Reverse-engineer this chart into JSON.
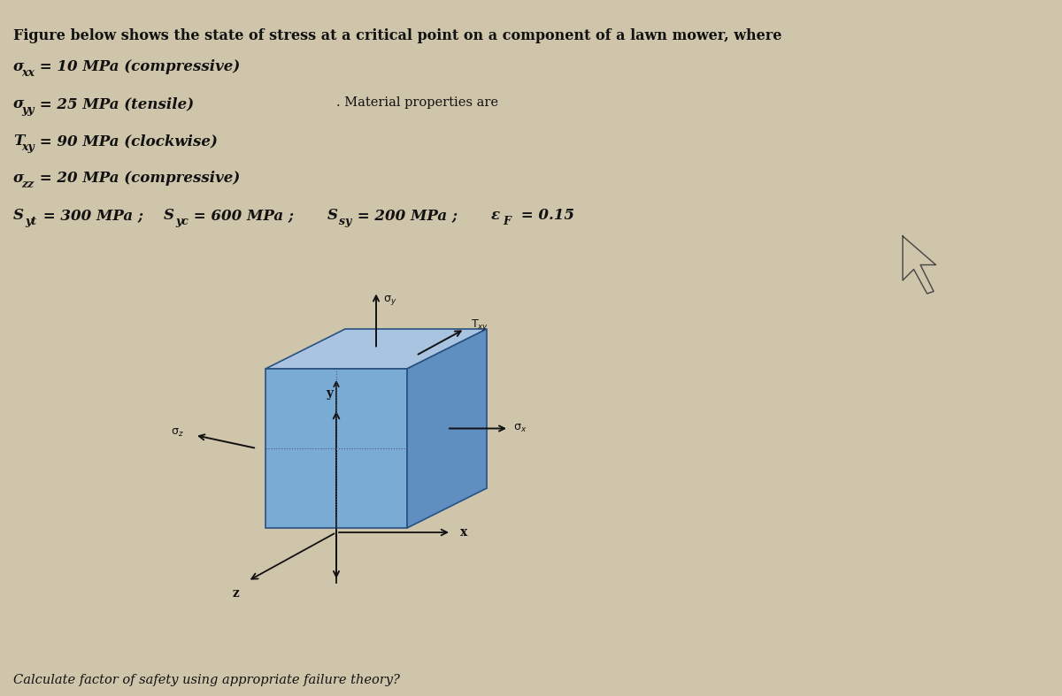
{
  "bg_color": "#cfc5aa",
  "title_line": "Figure below shows the state of stress at a critical point on a component of a lawn mower, where",
  "line1": "σ",
  "line1_sub": "xx",
  "line1_rest": " = 10 MPa (compressive)",
  "line2": "σ",
  "line2_sub": "yy",
  "line2_rest": " = 25 MPa (tensile)",
  "line3": "T",
  "line3_sub": "xy",
  "line3_rest": " = 90 MPa (clockwise)",
  "line4": "σ",
  "line4_sub": "zz",
  "line4_rest": " = 20 MPa (compressive)",
  "line5a": "S",
  "line5a_sub": "yt",
  "line5a_rest": " = 300 MPa ;  S",
  "line5b_sub": "yc",
  "line5b_rest": " = 600 MPa ;  S",
  "line5c_sub": "sy",
  "line5c_rest": " = 200 MPa ;  ε",
  "line5d_sub": "F",
  "line5d_rest": " = 0.15",
  "mat_label": ". Material properties are",
  "bottom_text": "Calculate factor of safety using appropriate failure theory?",
  "cube_top_color": "#a8c4e0",
  "cube_front_color": "#7aabd4",
  "cube_right_color": "#5e8fc0",
  "cube_left_color": "#8ab8d8",
  "cube_edge_color": "#2a5080",
  "axis_color": "#111111",
  "stress_color": "#111111",
  "text_color": "#111111"
}
